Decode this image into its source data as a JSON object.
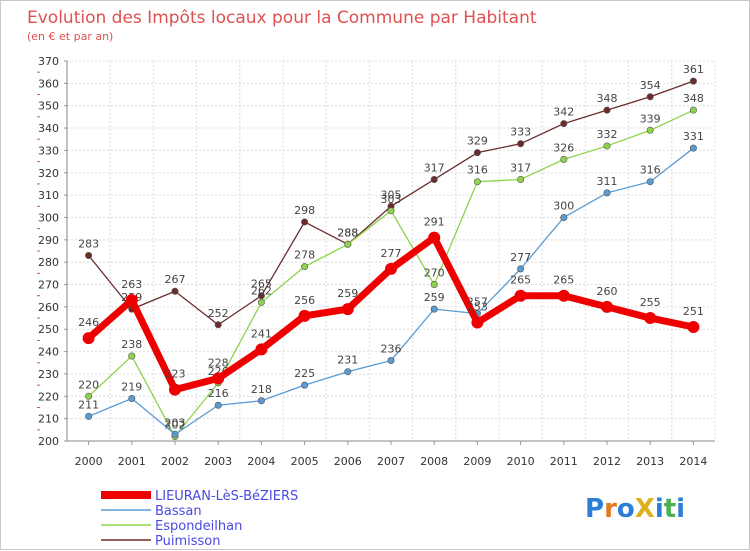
{
  "chart_data": {
    "type": "line",
    "title": "Evolution des Impôts locaux pour la Commune par Habitant",
    "subtitle": "(en € et par an)",
    "xlabel": "",
    "ylabel": "",
    "x": [
      2000,
      2001,
      2002,
      2003,
      2004,
      2005,
      2006,
      2007,
      2008,
      2009,
      2010,
      2011,
      2012,
      2013,
      2014
    ],
    "ylim": [
      200,
      370
    ],
    "yticks": [
      200,
      210,
      220,
      230,
      240,
      250,
      260,
      270,
      280,
      290,
      300,
      310,
      320,
      330,
      340,
      350,
      360,
      370
    ],
    "grid": true,
    "legend_position": "bottom-left",
    "series": [
      {
        "name": "LIEURAN-LèS-BéZIERS",
        "color": "#ee0000",
        "values": [
          246,
          263,
          223,
          228,
          241,
          256,
          259,
          277,
          291,
          253,
          265,
          265,
          260,
          255,
          251
        ]
      },
      {
        "name": "Bassan",
        "color": "#5a9bd5",
        "values": [
          211,
          219,
          203,
          216,
          218,
          225,
          231,
          236,
          259,
          257,
          277,
          300,
          311,
          316,
          331
        ]
      },
      {
        "name": "Espondeilhan",
        "color": "#8ed34a",
        "values": [
          220,
          238,
          202,
          226,
          262,
          278,
          288,
          303,
          270,
          316,
          317,
          326,
          332,
          339,
          348
        ]
      },
      {
        "name": "Puimisson",
        "color": "#6b2c2c",
        "values": [
          283,
          259,
          267,
          252,
          265,
          298,
          288,
          305,
          317,
          329,
          333,
          342,
          348,
          354,
          361
        ]
      }
    ]
  },
  "logo": {
    "text": "ProXiti"
  }
}
